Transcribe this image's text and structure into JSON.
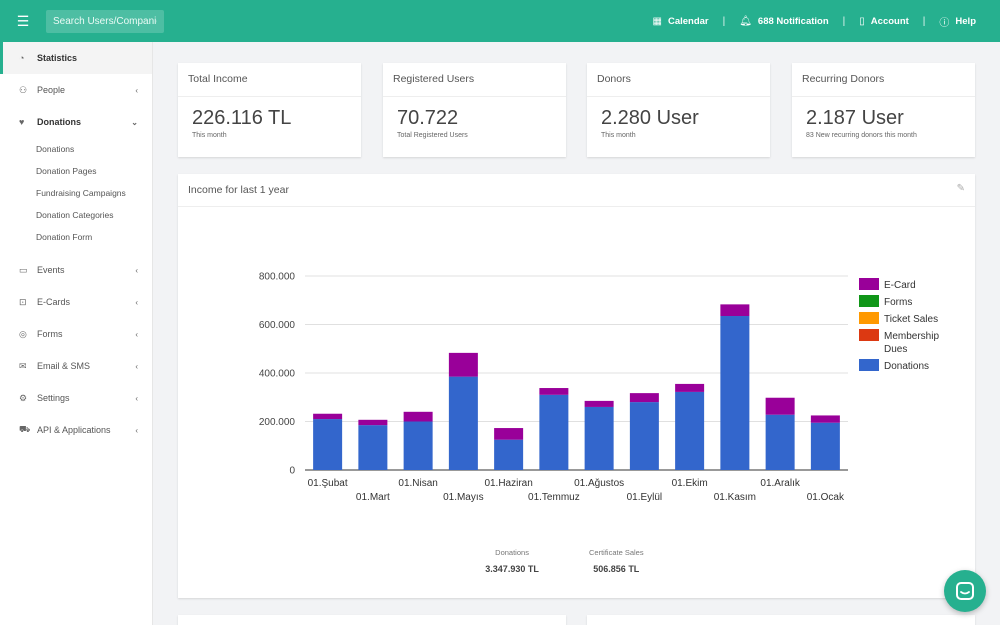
{
  "topbar": {
    "search_placeholder": "Search Users/Companies",
    "nav": [
      {
        "icon": "calendar-icon",
        "label": "Calendar"
      },
      {
        "icon": "bell-icon",
        "label": "688 Notification"
      },
      {
        "icon": "account-icon",
        "label": "Account"
      },
      {
        "icon": "help-icon",
        "label": "Help"
      }
    ],
    "separator": "|"
  },
  "sidebar": {
    "items": [
      {
        "label": "Statistics",
        "icon": "dashboard-icon",
        "state": "active"
      },
      {
        "label": "People",
        "icon": "people-icon",
        "chevron": "‹"
      },
      {
        "label": "Donations",
        "icon": "heart-icon",
        "chevron": "⌄",
        "state": "open",
        "children": [
          "Donations",
          "Donation Pages",
          "Fundraising Campaigns",
          "Donation Categories",
          "Donation Form"
        ]
      },
      {
        "label": "Events",
        "icon": "events-icon",
        "chevron": "‹"
      },
      {
        "label": "E-Cards",
        "icon": "ecard-icon",
        "chevron": "‹"
      },
      {
        "label": "Forms",
        "icon": "forms-icon",
        "chevron": "‹"
      },
      {
        "label": "Email & SMS",
        "icon": "mail-icon",
        "chevron": "‹"
      },
      {
        "label": "Settings",
        "icon": "settings-icon",
        "chevron": "‹"
      },
      {
        "label": "API & Applications",
        "icon": "cart-icon",
        "chevron": "‹"
      }
    ]
  },
  "stats": [
    {
      "title": "Total Income",
      "value": "226.116 TL",
      "sub": "This month"
    },
    {
      "title": "Registered Users",
      "value": "70.722",
      "sub": "Total Registered Users"
    },
    {
      "title": "Donors",
      "value": "2.280 User",
      "sub": "This month"
    },
    {
      "title": "Recurring Donors",
      "value": "2.187 User",
      "sub": "83 New recurring donors this month"
    }
  ],
  "chart_card": {
    "title": "Income for last 1 year",
    "totals": [
      {
        "label": "Donations",
        "value": "3.347.930 TL"
      },
      {
        "label": "Certificate Sales",
        "value": "506.856 TL"
      }
    ]
  },
  "chart_data": {
    "type": "bar",
    "stacked": true,
    "categories": [
      "01.Şubat",
      "01.Mart",
      "01.Nisan",
      "01.Mayıs",
      "01.Haziran",
      "01.Temmuz",
      "01.Ağustos",
      "01.Eylül",
      "01.Ekim",
      "01.Kasım",
      "01.Aralık",
      "01.Ocak"
    ],
    "series": [
      {
        "name": "Donations",
        "color": "#3366cc",
        "values": [
          210000,
          185000,
          200000,
          385000,
          125000,
          310000,
          260000,
          280000,
          322000,
          635000,
          228000,
          195000
        ]
      },
      {
        "name": "Membership Dues",
        "color": "#dc3912",
        "values": [
          0,
          0,
          0,
          0,
          0,
          0,
          0,
          0,
          0,
          0,
          0,
          0
        ]
      },
      {
        "name": "Ticket Sales",
        "color": "#ff9900",
        "values": [
          0,
          0,
          0,
          0,
          0,
          0,
          0,
          0,
          0,
          0,
          0,
          0
        ]
      },
      {
        "name": "Forms",
        "color": "#109618",
        "values": [
          0,
          0,
          0,
          0,
          0,
          0,
          0,
          0,
          0,
          0,
          0,
          0
        ]
      },
      {
        "name": "E-Card",
        "color": "#990099",
        "values": [
          22000,
          22000,
          40000,
          98000,
          48000,
          28000,
          25000,
          37000,
          33000,
          48000,
          70000,
          30000
        ]
      }
    ],
    "legend_order": [
      "E-Card",
      "Forms",
      "Ticket Sales",
      "Membership Dues",
      "Donations"
    ],
    "ylim": [
      0,
      800000
    ],
    "yticks": [
      "0",
      "200.000",
      "400.000",
      "600.000",
      "800.000"
    ],
    "ytick_values": [
      0,
      200000,
      400000,
      600000,
      800000
    ],
    "grid": true,
    "legend_position": "right"
  },
  "colors": {
    "brand": "#26b08f"
  }
}
